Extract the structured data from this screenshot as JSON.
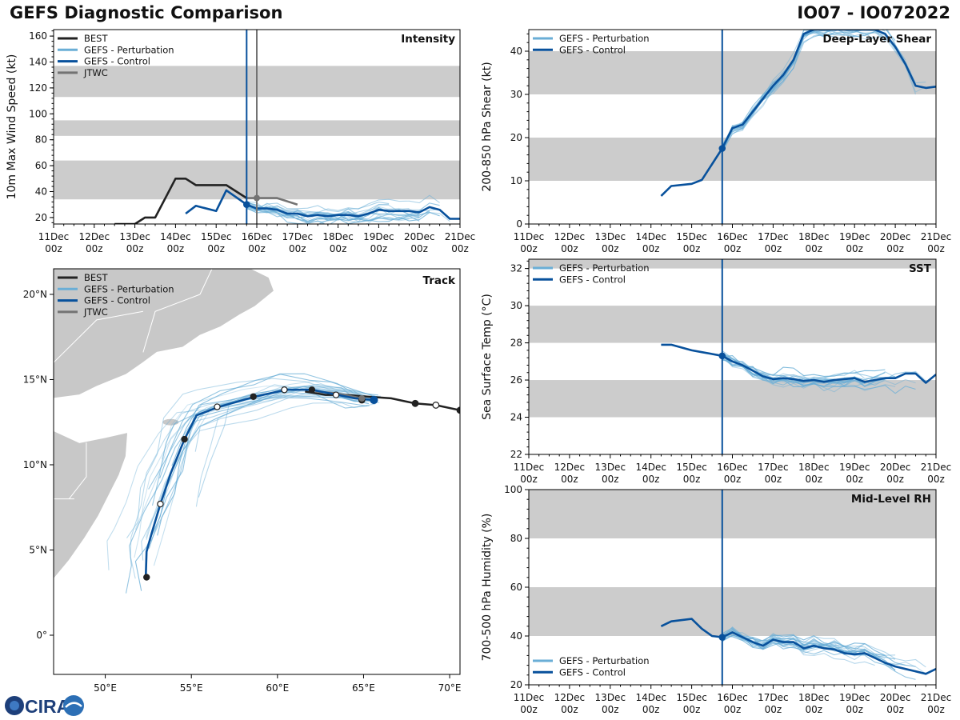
{
  "header": {
    "title": "GEFS Diagnostic Comparison",
    "storm_id": "IO07 - IO072022"
  },
  "logo": {
    "text": "CIRA"
  },
  "colors": {
    "best": "#222222",
    "perturbation": "#6aaed6",
    "control": "#08519c",
    "jtwc": "#737373",
    "band": "#cccccc",
    "now": "#08519c",
    "land": "#c8c8c8"
  },
  "time_ticks": [
    {
      "day": "11Dec",
      "hr": "00z"
    },
    {
      "day": "12Dec",
      "hr": "00z"
    },
    {
      "day": "13Dec",
      "hr": "00z"
    },
    {
      "day": "14Dec",
      "hr": "00z"
    },
    {
      "day": "15Dec",
      "hr": "00z"
    },
    {
      "day": "16Dec",
      "hr": "00z"
    },
    {
      "day": "17Dec",
      "hr": "00z"
    },
    {
      "day": "18Dec",
      "hr": "00z"
    },
    {
      "day": "19Dec",
      "hr": "00z"
    },
    {
      "day": "20Dec",
      "hr": "00z"
    },
    {
      "day": "21Dec",
      "hr": "00z"
    }
  ],
  "current_time": 4.75,
  "chart_data": [
    {
      "id": "intensity",
      "type": "line",
      "title": "Intensity",
      "ylabel": "10m Max Wind Speed (kt)",
      "xlim": [
        0,
        10
      ],
      "ylim": [
        15,
        165
      ],
      "yticks": [
        20,
        40,
        60,
        80,
        100,
        120,
        140,
        160
      ],
      "bands": [
        [
          34,
          64
        ],
        [
          83,
          95
        ],
        [
          113,
          137
        ]
      ],
      "legend": [
        "BEST",
        "GEFS - Perturbation",
        "GEFS - Control",
        "JTWC"
      ],
      "jtwc_time": 5.0,
      "series": [
        {
          "name": "BEST",
          "x": [
            1.5,
            2,
            2.25,
            2.5,
            3,
            3.25,
            3.5,
            4,
            4.25,
            4.5,
            4.75
          ],
          "y": [
            15,
            15,
            20,
            20,
            50,
            50,
            45,
            45,
            45,
            40,
            35
          ]
        },
        {
          "name": "JTWC",
          "x": [
            4.75,
            5,
            5.5,
            6
          ],
          "y": [
            35,
            35,
            35,
            30
          ]
        },
        {
          "name": "GEFS - Control",
          "x": [
            3.25,
            3.5,
            4,
            4.25,
            4.75,
            5,
            5.25,
            5.5,
            5.75,
            6,
            6.25,
            6.5,
            6.75,
            7,
            7.25,
            7.5,
            7.75,
            8,
            8.25,
            8.5,
            8.75,
            9,
            9.25,
            9.5,
            9.75,
            10
          ],
          "y": [
            23,
            29,
            25,
            41,
            30,
            27,
            27,
            26,
            23,
            23,
            21,
            22,
            21,
            22,
            22,
            21,
            23,
            26,
            25,
            25,
            25,
            24,
            28,
            26,
            19,
            19
          ]
        }
      ],
      "ensemble_members": 18
    },
    {
      "id": "shear",
      "type": "line",
      "title": "Deep-Layer Shear",
      "ylabel": "200-850 hPa Shear (kt)",
      "xlim": [
        0,
        10
      ],
      "ylim": [
        0,
        45
      ],
      "yticks": [
        0,
        10,
        20,
        30,
        40
      ],
      "bands": [
        [
          10,
          20
        ],
        [
          30,
          40
        ]
      ],
      "legend": [
        "GEFS - Perturbation",
        "GEFS - Control"
      ],
      "series": [
        {
          "name": "GEFS - Control",
          "x": [
            3.25,
            3.5,
            4,
            4.25,
            4.75,
            5,
            5.25,
            5.5,
            5.75,
            6,
            6.25,
            6.5,
            6.75,
            7,
            7.25,
            7.5,
            7.75,
            8,
            8.25,
            8.5,
            8.75,
            9,
            9.25,
            9.5,
            9.75,
            10
          ],
          "y": [
            6.5,
            8.8,
            9.3,
            10.2,
            17.5,
            22.2,
            23,
            26,
            29,
            32,
            34.5,
            38,
            44,
            45,
            45,
            45,
            45,
            45,
            45,
            45,
            44,
            41,
            37,
            32,
            31.5,
            31.8
          ]
        }
      ],
      "ensemble_members": 18
    },
    {
      "id": "sst",
      "type": "line",
      "title": "SST",
      "ylabel": "Sea Surface Temp (°C)",
      "xlim": [
        0,
        10
      ],
      "ylim": [
        22,
        32.5
      ],
      "yticks": [
        22,
        24,
        26,
        28,
        30,
        32
      ],
      "bands": [
        [
          24,
          26
        ],
        [
          28,
          30
        ],
        [
          32,
          34
        ]
      ],
      "legend": [
        "GEFS - Perturbation",
        "GEFS - Control"
      ],
      "series": [
        {
          "name": "GEFS - Control",
          "x": [
            3.25,
            3.5,
            4,
            4.25,
            4.75,
            5,
            5.25,
            5.5,
            5.75,
            6,
            6.25,
            6.5,
            6.75,
            7,
            7.25,
            7.5,
            7.75,
            8,
            8.25,
            8.5,
            8.75,
            9,
            9.25,
            9.5,
            9.75,
            10
          ],
          "y": [
            27.9,
            27.9,
            27.6,
            27.5,
            27.3,
            27,
            26.8,
            26.5,
            26.2,
            26.05,
            26.1,
            26.05,
            25.95,
            26.0,
            25.9,
            26.0,
            26.05,
            26.1,
            25.9,
            26.0,
            26.1,
            26.1,
            26.35,
            26.35,
            25.85,
            26.3
          ]
        }
      ],
      "ensemble_members": 18
    },
    {
      "id": "rh",
      "type": "line",
      "title": "Mid-Level RH",
      "ylabel": "700-500 hPa Humidity (%)",
      "xlim": [
        0,
        10
      ],
      "ylim": [
        20,
        100
      ],
      "yticks": [
        20,
        40,
        60,
        80,
        100
      ],
      "bands": [
        [
          40,
          60
        ],
        [
          80,
          100
        ]
      ],
      "legend": [
        "GEFS - Perturbation",
        "GEFS - Control"
      ],
      "series": [
        {
          "name": "GEFS - Control",
          "x": [
            3.25,
            3.5,
            4,
            4.25,
            4.5,
            4.75,
            5,
            5.25,
            5.5,
            5.75,
            6,
            6.25,
            6.5,
            6.75,
            7,
            7.25,
            7.5,
            7.75,
            8,
            8.25,
            8.5,
            8.75,
            9,
            9.25,
            9.5,
            9.75,
            10
          ],
          "y": [
            44,
            46,
            47,
            43,
            40,
            39.5,
            41.5,
            39.5,
            37.5,
            36,
            38.5,
            37.5,
            37.5,
            35,
            36,
            35,
            34.5,
            33,
            32.5,
            33,
            31,
            29,
            27.5,
            26.5,
            25.5,
            24.5,
            26.5
          ]
        }
      ],
      "ensemble_members": 18
    },
    {
      "id": "track",
      "type": "scatter",
      "title": "Track",
      "xlim": [
        47,
        70.6
      ],
      "ylim": [
        -2.3,
        21.5
      ],
      "xticks": [
        50,
        55,
        60,
        65,
        70
      ],
      "xticklabels": [
        "50°E",
        "55°E",
        "60°E",
        "65°E",
        "70°E"
      ],
      "yticks": [
        0,
        5,
        10,
        15,
        20
      ],
      "yticklabels": [
        "0°",
        "5°N",
        "10°N",
        "15°N",
        "20°N"
      ],
      "legend": [
        "BEST",
        "GEFS - Perturbation",
        "GEFS - Control",
        "JTWC"
      ],
      "series": [
        {
          "name": "BEST",
          "lon": [
            70.6,
            69.2,
            68,
            66.6,
            65.2,
            64,
            62.8,
            61.6
          ],
          "lat": [
            13.2,
            13.5,
            13.6,
            13.9,
            14.0,
            14.1,
            14.1,
            14.3
          ]
        },
        {
          "name": "BEST points",
          "lon": [
            70.6,
            69.2,
            68,
            64.9
          ],
          "lat": [
            13.2,
            13.5,
            13.6,
            13.8
          ],
          "open": [
            false,
            true,
            false,
            false
          ]
        },
        {
          "name": "JTWC",
          "lon": [
            64.9,
            63.4,
            62.2
          ],
          "lat": [
            13.9,
            14.2,
            14.3
          ]
        },
        {
          "name": "GEFS - Control",
          "lon": [
            65.6,
            64.5,
            63.5,
            62.0,
            60.5,
            58.7,
            56.6,
            55.3,
            54.6,
            53.8,
            53.2,
            52.7,
            52.4,
            52.35
          ],
          "lat": [
            13.8,
            13.9,
            14.1,
            14.4,
            14.4,
            14.0,
            13.4,
            12.9,
            11.5,
            9.5,
            7.7,
            6.0,
            4.9,
            3.4
          ]
        },
        {
          "name": "Control points",
          "lon": [
            65.6,
            63.4,
            62.0,
            60.4,
            58.6,
            56.5,
            54.6,
            53.2,
            52.4
          ],
          "lat": [
            13.8,
            14.1,
            14.4,
            14.4,
            14.0,
            13.4,
            11.5,
            7.7,
            3.4
          ],
          "open": [
            false,
            true,
            false,
            true,
            false,
            true,
            false,
            true,
            false
          ]
        }
      ],
      "ensemble_members": 22
    }
  ]
}
